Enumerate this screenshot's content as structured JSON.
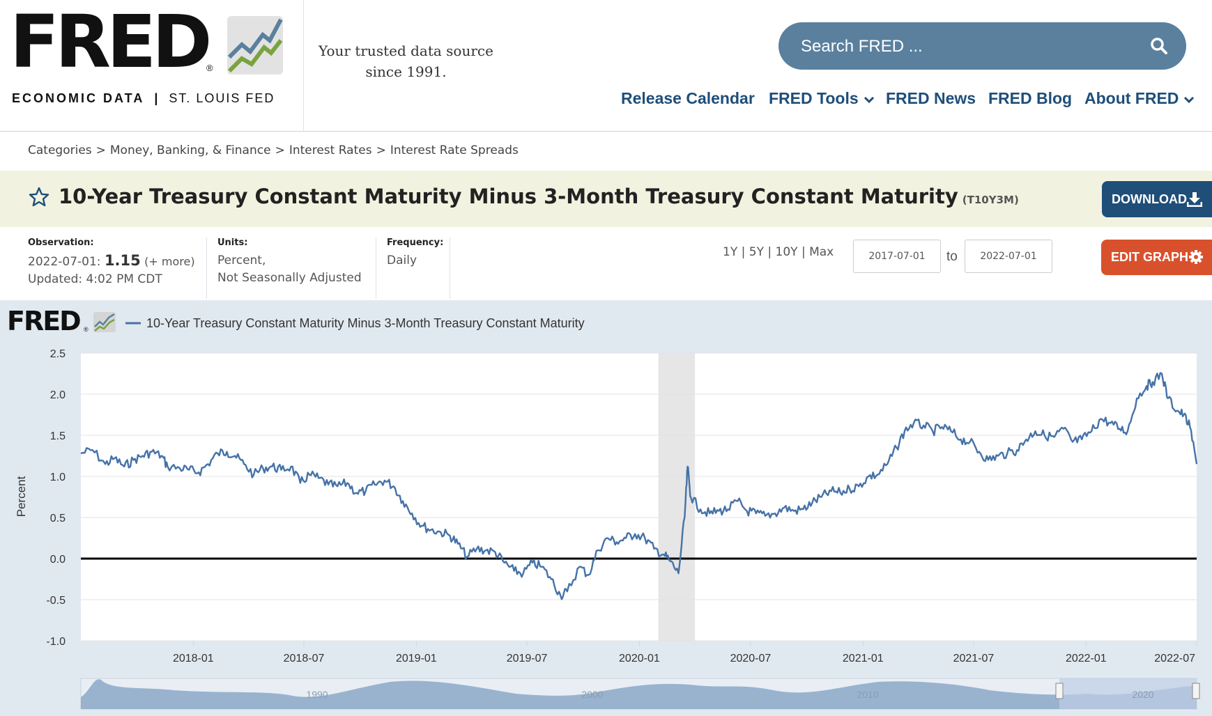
{
  "header": {
    "logo_text": "FRED",
    "logo_registered": "®",
    "logo_sub_left": "ECONOMIC DATA",
    "logo_sub_sep": "|",
    "logo_sub_right": "ST. LOUIS FED",
    "tagline_line1": "Your trusted data source",
    "tagline_line2": "since 1991.",
    "search_placeholder": "Search FRED ...",
    "nav": [
      "Release Calendar",
      "FRED Tools",
      "FRED News",
      "FRED Blog",
      "About FRED"
    ]
  },
  "breadcrumb": [
    "Categories",
    "Money, Banking, & Finance",
    "Interest Rates",
    "Interest Rate Spreads"
  ],
  "breadcrumb_separator": ">",
  "series": {
    "title": "10-Year Treasury Constant Maturity Minus 3-Month Treasury Constant Maturity",
    "id": "(T10Y3M)",
    "download_label": "DOWNLOAD"
  },
  "meta": {
    "observation_label": "Observation:",
    "observation_date": "2022-07-01:",
    "observation_value": "1.15",
    "observation_more": "(+ more)",
    "updated": "Updated: 4:02 PM CDT",
    "units_label": "Units:",
    "units_line1": "Percent,",
    "units_line2": "Not Seasonally Adjusted",
    "frequency_label": "Frequency:",
    "frequency_value": "Daily"
  },
  "controls": {
    "range_links": [
      "1Y",
      "5Y",
      "10Y",
      "Max"
    ],
    "range_sep": "|",
    "date_from": "2017-07-01",
    "date_to_label": "to",
    "date_to": "2022-07-01",
    "edit_label": "EDIT GRAPH"
  },
  "chart_brand": "FRED",
  "chart_brand_reg": "®",
  "colors": {
    "series": "#4572a7",
    "recession": "#e6e6e6",
    "download_bg": "#1f4e79",
    "edit_bg": "#d9512c",
    "nav_text": "#1f4e79",
    "search_bg": "#5a809e"
  },
  "chart_data": {
    "type": "line",
    "title": "",
    "legend": "10-Year Treasury Constant Maturity Minus 3-Month Treasury Constant Maturity",
    "ylabel": "Percent",
    "xlabel": "",
    "ylim": [
      -1.0,
      2.5
    ],
    "yticks": [
      "2.5",
      "2.0",
      "1.5",
      "1.0",
      "0.5",
      "0.0",
      "-0.5",
      "-1.0"
    ],
    "xlim": [
      "2017-07-01",
      "2022-07-01"
    ],
    "xticks": [
      "2018-01",
      "2018-07",
      "2019-01",
      "2019-07",
      "2020-01",
      "2020-07",
      "2021-01",
      "2021-07",
      "2022-01",
      "2022-07"
    ],
    "recession": [
      "2020-02",
      "2020-04"
    ],
    "zero_line": 0,
    "grid": true,
    "series": [
      {
        "name": "10-Year Treasury Constant Maturity Minus 3-Month Treasury Constant Maturity",
        "points": [
          [
            "2017-07-01",
            1.28
          ],
          [
            "2017-07-20",
            1.32
          ],
          [
            "2017-08-10",
            1.15
          ],
          [
            "2017-08-25",
            1.22
          ],
          [
            "2017-09-10",
            1.12
          ],
          [
            "2017-09-25",
            1.2
          ],
          [
            "2017-10-10",
            1.25
          ],
          [
            "2017-10-25",
            1.3
          ],
          [
            "2017-11-10",
            1.25
          ],
          [
            "2017-11-20",
            1.12
          ],
          [
            "2017-12-10",
            1.1
          ],
          [
            "2017-12-25",
            1.08
          ],
          [
            "2018-01-10",
            1.05
          ],
          [
            "2018-01-25",
            1.15
          ],
          [
            "2018-02-10",
            1.28
          ],
          [
            "2018-02-25",
            1.3
          ],
          [
            "2018-03-10",
            1.25
          ],
          [
            "2018-03-25",
            1.15
          ],
          [
            "2018-04-10",
            1.02
          ],
          [
            "2018-04-25",
            1.1
          ],
          [
            "2018-05-10",
            1.12
          ],
          [
            "2018-05-25",
            1.08
          ],
          [
            "2018-06-10",
            1.12
          ],
          [
            "2018-06-25",
            0.92
          ],
          [
            "2018-07-10",
            1.02
          ],
          [
            "2018-07-25",
            0.98
          ],
          [
            "2018-08-10",
            0.9
          ],
          [
            "2018-08-25",
            0.88
          ],
          [
            "2018-09-10",
            0.92
          ],
          [
            "2018-09-25",
            0.8
          ],
          [
            "2018-10-10",
            0.82
          ],
          [
            "2018-10-25",
            0.9
          ],
          [
            "2018-11-10",
            0.95
          ],
          [
            "2018-11-25",
            0.88
          ],
          [
            "2018-12-10",
            0.7
          ],
          [
            "2018-12-25",
            0.55
          ],
          [
            "2019-01-10",
            0.4
          ],
          [
            "2019-01-25",
            0.35
          ],
          [
            "2019-02-10",
            0.32
          ],
          [
            "2019-02-25",
            0.28
          ],
          [
            "2019-03-10",
            0.18
          ],
          [
            "2019-03-25",
            0.02
          ],
          [
            "2019-04-10",
            0.12
          ],
          [
            "2019-04-25",
            0.1
          ],
          [
            "2019-05-10",
            0.08
          ],
          [
            "2019-05-25",
            -0.05
          ],
          [
            "2019-06-10",
            -0.15
          ],
          [
            "2019-06-25",
            -0.18
          ],
          [
            "2019-07-10",
            -0.05
          ],
          [
            "2019-07-25",
            -0.1
          ],
          [
            "2019-08-10",
            -0.25
          ],
          [
            "2019-08-25",
            -0.45
          ],
          [
            "2019-09-05",
            -0.4
          ],
          [
            "2019-09-25",
            -0.1
          ],
          [
            "2019-10-10",
            -0.2
          ],
          [
            "2019-10-25",
            0.1
          ],
          [
            "2019-11-10",
            0.25
          ],
          [
            "2019-11-25",
            0.2
          ],
          [
            "2019-12-10",
            0.25
          ],
          [
            "2019-12-25",
            0.3
          ],
          [
            "2020-01-10",
            0.25
          ],
          [
            "2020-01-25",
            0.12
          ],
          [
            "2020-02-10",
            0.05
          ],
          [
            "2020-02-20",
            -0.03
          ],
          [
            "2020-03-05",
            -0.18
          ],
          [
            "2020-03-15",
            0.5
          ],
          [
            "2020-03-20",
            1.12
          ],
          [
            "2020-03-25",
            0.75
          ],
          [
            "2020-04-10",
            0.6
          ],
          [
            "2020-04-25",
            0.55
          ],
          [
            "2020-05-10",
            0.58
          ],
          [
            "2020-05-25",
            0.6
          ],
          [
            "2020-06-10",
            0.7
          ],
          [
            "2020-06-25",
            0.58
          ],
          [
            "2020-07-10",
            0.55
          ],
          [
            "2020-07-25",
            0.52
          ],
          [
            "2020-08-10",
            0.55
          ],
          [
            "2020-08-25",
            0.62
          ],
          [
            "2020-09-10",
            0.58
          ],
          [
            "2020-09-25",
            0.6
          ],
          [
            "2020-10-10",
            0.68
          ],
          [
            "2020-10-25",
            0.75
          ],
          [
            "2020-11-10",
            0.82
          ],
          [
            "2020-11-25",
            0.8
          ],
          [
            "2020-12-10",
            0.85
          ],
          [
            "2020-12-25",
            0.88
          ],
          [
            "2021-01-10",
            1.0
          ],
          [
            "2021-01-25",
            1.02
          ],
          [
            "2021-02-10",
            1.15
          ],
          [
            "2021-02-25",
            1.35
          ],
          [
            "2021-03-10",
            1.55
          ],
          [
            "2021-03-25",
            1.65
          ],
          [
            "2021-04-10",
            1.62
          ],
          [
            "2021-04-25",
            1.55
          ],
          [
            "2021-05-10",
            1.6
          ],
          [
            "2021-05-25",
            1.55
          ],
          [
            "2021-06-10",
            1.45
          ],
          [
            "2021-06-25",
            1.42
          ],
          [
            "2021-07-10",
            1.3
          ],
          [
            "2021-07-25",
            1.2
          ],
          [
            "2021-08-10",
            1.25
          ],
          [
            "2021-08-25",
            1.28
          ],
          [
            "2021-09-10",
            1.32
          ],
          [
            "2021-09-25",
            1.45
          ],
          [
            "2021-10-10",
            1.55
          ],
          [
            "2021-10-25",
            1.5
          ],
          [
            "2021-11-10",
            1.48
          ],
          [
            "2021-11-25",
            1.58
          ],
          [
            "2021-12-10",
            1.42
          ],
          [
            "2021-12-25",
            1.45
          ],
          [
            "2022-01-10",
            1.55
          ],
          [
            "2022-01-25",
            1.7
          ],
          [
            "2022-02-10",
            1.65
          ],
          [
            "2022-02-25",
            1.58
          ],
          [
            "2022-03-10",
            1.55
          ],
          [
            "2022-03-25",
            1.95
          ],
          [
            "2022-04-10",
            2.1
          ],
          [
            "2022-04-20",
            2.15
          ],
          [
            "2022-05-05",
            2.25
          ],
          [
            "2022-05-15",
            1.95
          ],
          [
            "2022-05-30",
            1.8
          ],
          [
            "2022-06-10",
            1.75
          ],
          [
            "2022-06-20",
            1.6
          ],
          [
            "2022-07-01",
            1.15
          ]
        ]
      }
    ],
    "navigator_labels": [
      "1990",
      "2000",
      "2010",
      "2020"
    ]
  }
}
